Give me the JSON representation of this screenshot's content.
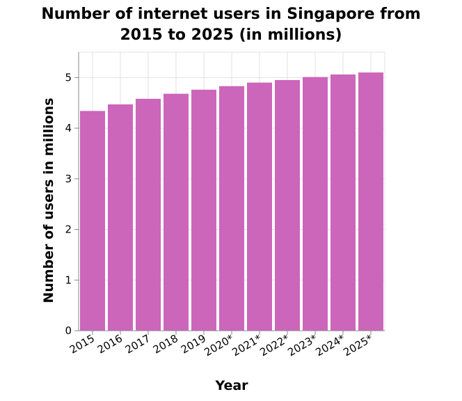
{
  "chart_data": {
    "type": "bar",
    "title_lines": [
      "Number of internet users in Singapore from",
      "2015 to 2025 (in millions)"
    ],
    "xlabel": "Year",
    "ylabel": "Number of users in millions",
    "categories": [
      "2015",
      "2016",
      "2017",
      "2018",
      "2019",
      "2020*",
      "2021*",
      "2022*",
      "2023*",
      "2024*",
      "2025*"
    ],
    "values": [
      4.34,
      4.47,
      4.58,
      4.68,
      4.76,
      4.83,
      4.9,
      4.95,
      5.01,
      5.06,
      5.1
    ],
    "ylim": [
      0,
      5.5
    ],
    "yticks": [
      0,
      1,
      2,
      3,
      4,
      5
    ],
    "grid": true,
    "bar_color": "#cc66bb"
  }
}
